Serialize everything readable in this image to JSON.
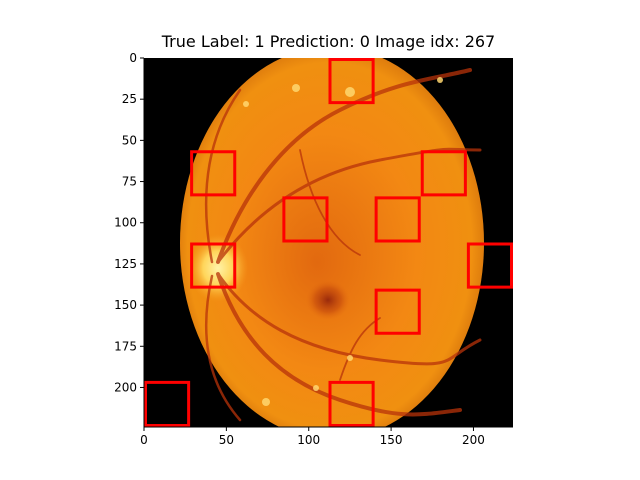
{
  "title": "True Label: 1  Prediction: 0  Image idx: 267",
  "axes": {
    "x_ticks": [
      0,
      50,
      100,
      150,
      200
    ],
    "y_ticks": [
      0,
      25,
      50,
      75,
      100,
      125,
      150,
      175,
      200
    ],
    "x_range": [
      0,
      224
    ],
    "y_range": [
      0,
      224
    ]
  },
  "image": {
    "subject": "retinal-fundus-photograph",
    "highlight_color": "#ff0000",
    "highlight_boxes": [
      {
        "x": 112,
        "y": 0,
        "w": 28,
        "h": 28
      },
      {
        "x": 28,
        "y": 56,
        "w": 28,
        "h": 28
      },
      {
        "x": 168,
        "y": 56,
        "w": 28,
        "h": 28
      },
      {
        "x": 84,
        "y": 84,
        "w": 28,
        "h": 28
      },
      {
        "x": 140,
        "y": 84,
        "w": 28,
        "h": 28
      },
      {
        "x": 28,
        "y": 112,
        "w": 28,
        "h": 28
      },
      {
        "x": 196,
        "y": 112,
        "w": 28,
        "h": 28
      },
      {
        "x": 140,
        "y": 140,
        "w": 28,
        "h": 28
      },
      {
        "x": 0,
        "y": 196,
        "w": 28,
        "h": 28
      },
      {
        "x": 112,
        "y": 196,
        "w": 28,
        "h": 28
      }
    ]
  }
}
